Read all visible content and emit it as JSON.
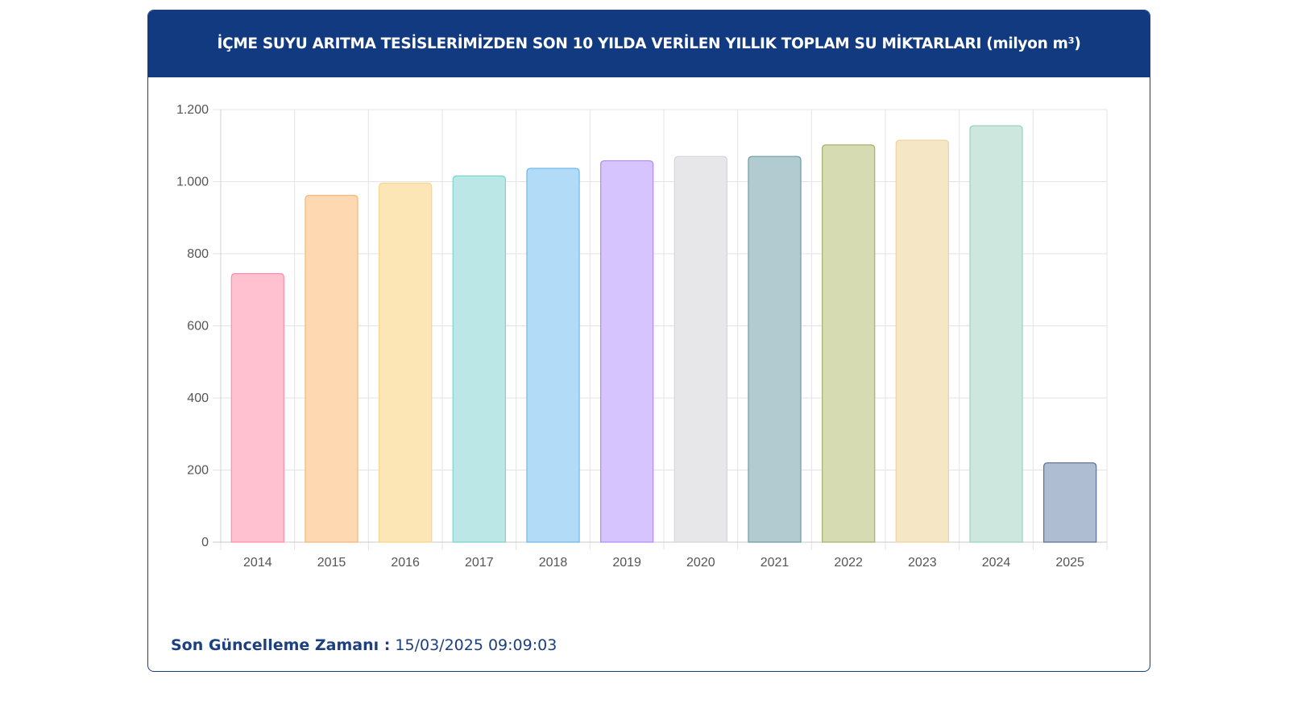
{
  "header": {
    "title": "İÇME SUYU ARITMA TESİSLERİMİZDEN SON 10 YILDA VERİLEN YILLIK TOPLAM SU MİKTARLARI (milyon m³)"
  },
  "footer": {
    "label": "Son Güncelleme Zamanı :",
    "value": "15/03/2025 09:09:03"
  },
  "chart_data": {
    "type": "bar",
    "categories": [
      "2014",
      "2015",
      "2016",
      "2017",
      "2018",
      "2019",
      "2020",
      "2021",
      "2022",
      "2023",
      "2024",
      "2025"
    ],
    "values": [
      745,
      962,
      996,
      1016,
      1037,
      1058,
      1070,
      1070,
      1102,
      1115,
      1155,
      220
    ],
    "ylim": [
      0,
      1200
    ],
    "yticks": [
      0,
      200,
      400,
      600,
      800,
      1000,
      1200
    ],
    "ytick_labels": [
      "0",
      "200",
      "400",
      "600",
      "800",
      "1.000",
      "1.200"
    ],
    "grid": true,
    "legend": "none",
    "bar_fill_colors": [
      "#ffc0cf",
      "#fed8b1",
      "#fde6b6",
      "#bbe7e6",
      "#b2dbf8",
      "#d6c4fe",
      "#e7e7ea",
      "#b1cbd0",
      "#d6dbb1",
      "#f5e7c6",
      "#cde6de",
      "#afbdd2"
    ],
    "bar_stroke_colors": [
      "#ff8fa8",
      "#f5b77a",
      "#f5d68a",
      "#7dd3cf",
      "#6cb8ec",
      "#b08cf6",
      "#d5d5da",
      "#6c9ca3",
      "#a8b06e",
      "#ead4a0",
      "#9dd2c0",
      "#5b6f94"
    ]
  }
}
